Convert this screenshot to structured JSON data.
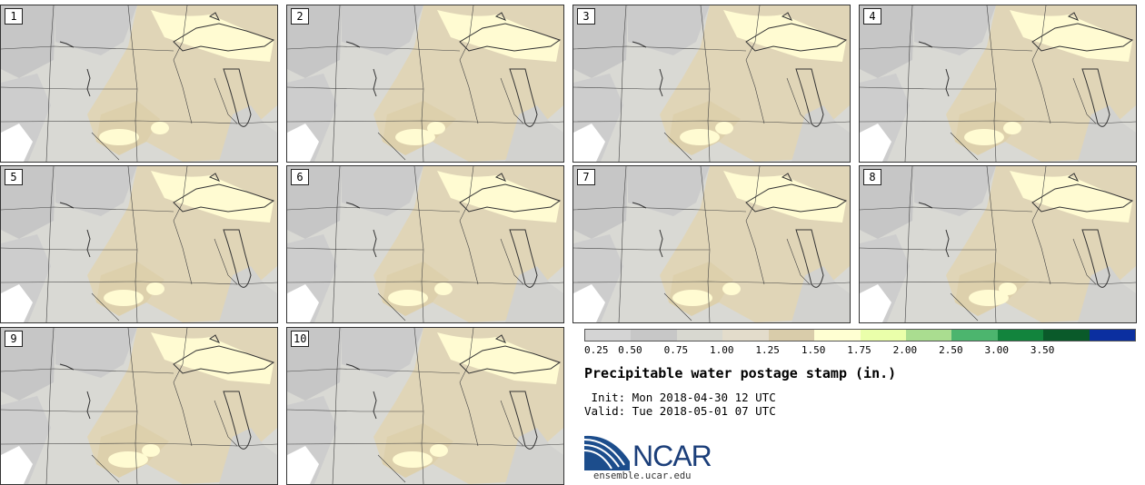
{
  "panels": [
    {
      "label": "1"
    },
    {
      "label": "2"
    },
    {
      "label": "3"
    },
    {
      "label": "4"
    },
    {
      "label": "5"
    },
    {
      "label": "6"
    },
    {
      "label": "7"
    },
    {
      "label": "8"
    },
    {
      "label": "9"
    },
    {
      "label": "10"
    }
  ],
  "legend": {
    "colors": [
      "#d4d4d4",
      "#c7c7c7",
      "#d8d8d0",
      "#e3dccb",
      "#d9ccaa",
      "#ffffd2",
      "#eaffaa",
      "#aadd90",
      "#4cb56e",
      "#12843d",
      "#0a5a2a",
      "#0b2fa0"
    ],
    "ticks": [
      "0.25",
      "0.50",
      "0.75",
      "1.00",
      "1.25",
      "1.50",
      "1.75",
      "2.00",
      "2.50",
      "3.00",
      "3.50"
    ]
  },
  "title": "Precipitable water postage stamp (in.)",
  "init": " Init: Mon 2018-04-30 12 UTC",
  "valid": "Valid: Tue 2018-05-01 07 UTC",
  "logo": {
    "text": "NCAR",
    "site": "ensemble.ucar.edu",
    "color": "#1c3f7a"
  }
}
